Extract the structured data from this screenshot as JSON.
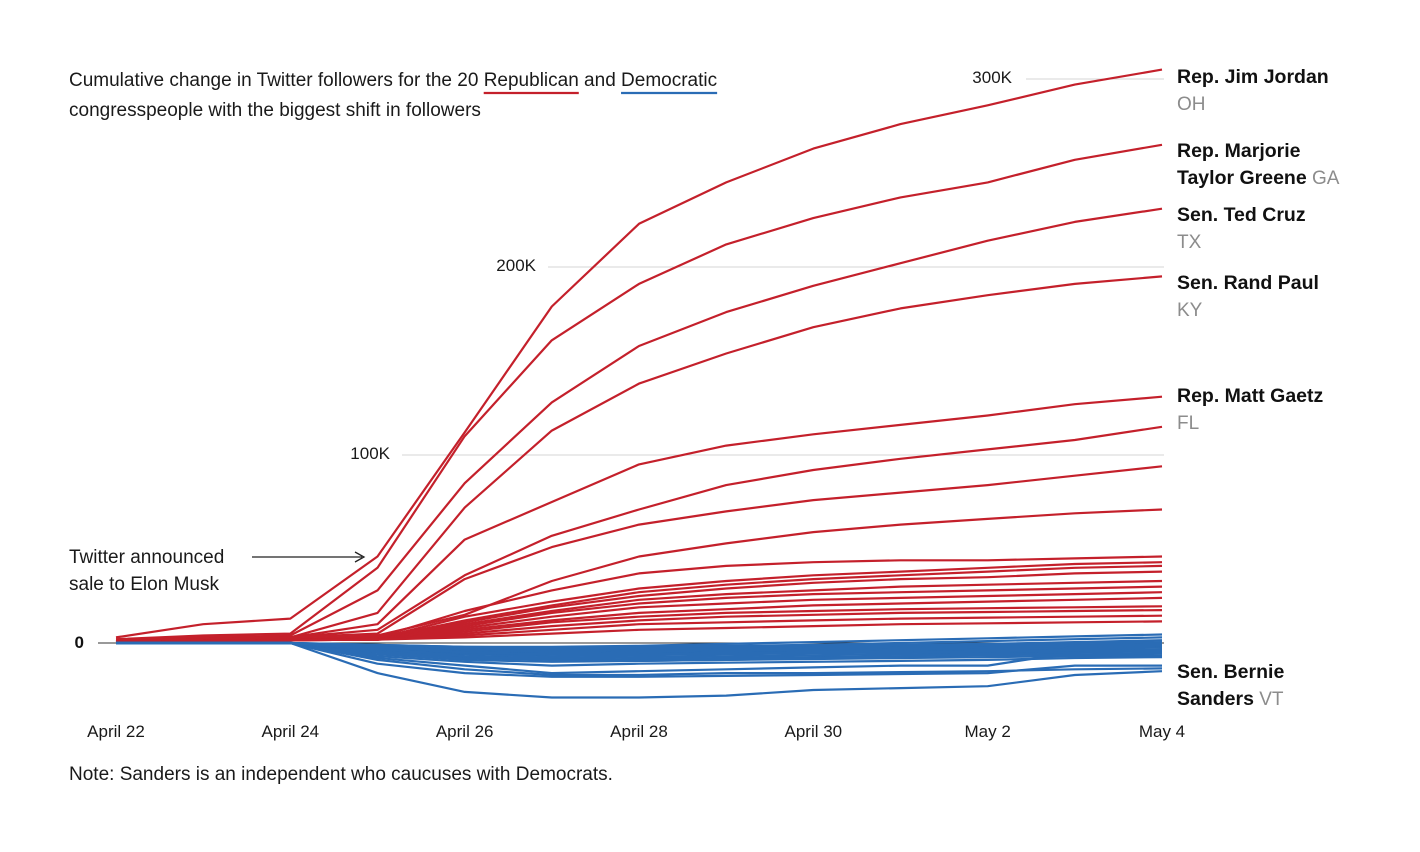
{
  "chart_data": {
    "type": "line",
    "title_line1_prefix": "Cumulative change in Twitter followers for the 20 ",
    "title_rep": "Republican",
    "title_mid": " and ",
    "title_dem": "Democratic",
    "title_line2": "congresspeople with the biggest shift in followers",
    "colors": {
      "republican": "#c4202b",
      "democratic": "#2a6cb5"
    },
    "x_dates": [
      "April 22",
      "April 23",
      "April 24",
      "April 25",
      "April 26",
      "April 27",
      "April 28",
      "April 29",
      "April 30",
      "May 1",
      "May 2",
      "May 3",
      "May 4"
    ],
    "x_tick_labels": [
      "April 22",
      "April 24",
      "April 26",
      "April 28",
      "April 30",
      "May 2",
      "May 4"
    ],
    "y_ticks": [
      {
        "value": 0,
        "label": "0"
      },
      {
        "value": 100000,
        "label": "100K"
      },
      {
        "value": 200000,
        "label": "200K"
      },
      {
        "value": 300000,
        "label": "300K"
      }
    ],
    "ylim": [
      -35000,
      310000
    ],
    "annotation": [
      "Twitter announced",
      "sale to Elon Musk"
    ],
    "note": "Note: Sanders is an independent who caucuses with Democrats.",
    "series": [
      {
        "party": "rep",
        "name": "Rep. Jim Jordan",
        "state": "OH",
        "values": [
          3000,
          10000,
          13000,
          46000,
          112000,
          179000,
          223000,
          245000,
          263000,
          276000,
          286000,
          297000,
          305000
        ]
      },
      {
        "party": "rep",
        "name": "Rep. Marjorie Taylor Greene",
        "state": "GA",
        "values": [
          2000,
          4000,
          5000,
          40000,
          110000,
          161000,
          191000,
          212000,
          226000,
          237000,
          245000,
          257000,
          265000
        ]
      },
      {
        "party": "rep",
        "name": "Sen. Ted Cruz",
        "state": "TX",
        "values": [
          1000,
          3000,
          4000,
          28000,
          85000,
          128000,
          158000,
          176000,
          190000,
          202000,
          214000,
          224000,
          231000
        ]
      },
      {
        "party": "rep",
        "name": "Sen. Rand Paul",
        "state": "KY",
        "values": [
          1000,
          2000,
          3000,
          16000,
          72000,
          113000,
          138000,
          154000,
          168000,
          178000,
          185000,
          191000,
          195000
        ]
      },
      {
        "party": "rep",
        "name": "Rep. Matt Gaetz",
        "state": "FL",
        "values": [
          1000,
          2000,
          3000,
          10000,
          55000,
          75000,
          95000,
          105000,
          111000,
          116000,
          121000,
          127000,
          131000
        ]
      },
      {
        "party": "rep",
        "name": "",
        "state": "",
        "values": [
          1000,
          2000,
          3000,
          7000,
          36000,
          57000,
          71000,
          84000,
          92000,
          98000,
          103000,
          108000,
          115000
        ]
      },
      {
        "party": "rep",
        "name": "",
        "state": "",
        "values": [
          1000,
          2000,
          3000,
          5000,
          34000,
          51000,
          63000,
          70000,
          76000,
          80000,
          84000,
          89000,
          94000
        ]
      },
      {
        "party": "rep",
        "name": "",
        "state": "",
        "values": [
          500,
          1000,
          2000,
          4000,
          15000,
          33000,
          46000,
          53000,
          59000,
          63000,
          66000,
          69000,
          71000
        ]
      },
      {
        "party": "rep",
        "name": "",
        "state": "",
        "values": [
          500,
          1000,
          2000,
          3000,
          17000,
          28000,
          37000,
          41000,
          43000,
          44000,
          44000,
          45000,
          46000
        ]
      },
      {
        "party": "rep",
        "name": "",
        "state": "",
        "values": [
          500,
          1000,
          1500,
          2500,
          14000,
          22000,
          29000,
          33000,
          36000,
          38000,
          40000,
          42000,
          43000
        ]
      },
      {
        "party": "rep",
        "name": "",
        "state": "",
        "values": [
          500,
          1000,
          1500,
          2500,
          12000,
          20000,
          27000,
          31000,
          34000,
          36000,
          38000,
          40000,
          41000
        ]
      },
      {
        "party": "rep",
        "name": "",
        "state": "",
        "values": [
          500,
          1000,
          1500,
          2000,
          11000,
          19000,
          25000,
          29000,
          32000,
          34000,
          35000,
          37000,
          38000
        ]
      },
      {
        "party": "rep",
        "name": "",
        "state": "",
        "values": [
          500,
          1000,
          1500,
          2000,
          10000,
          17000,
          23000,
          26000,
          28000,
          30000,
          31000,
          32000,
          33000
        ]
      },
      {
        "party": "rep",
        "name": "",
        "state": "",
        "values": [
          500,
          1000,
          1500,
          2000,
          9000,
          16000,
          21000,
          24000,
          26000,
          27000,
          28000,
          29000,
          30000
        ]
      },
      {
        "party": "rep",
        "name": "",
        "state": "",
        "values": [
          500,
          1000,
          1500,
          2000,
          8000,
          14000,
          19000,
          21000,
          23000,
          24000,
          25000,
          26000,
          27000
        ]
      },
      {
        "party": "rep",
        "name": "",
        "state": "",
        "values": [
          500,
          1000,
          1500,
          1800,
          7000,
          12000,
          16000,
          18000,
          20000,
          21000,
          22000,
          23000,
          24000
        ]
      },
      {
        "party": "rep",
        "name": "",
        "state": "",
        "values": [
          500,
          1000,
          1500,
          1800,
          6000,
          11000,
          14000,
          16000,
          17000,
          18000,
          18500,
          19000,
          19500
        ]
      },
      {
        "party": "rep",
        "name": "",
        "state": "",
        "values": [
          500,
          1000,
          1500,
          1800,
          5000,
          9000,
          12000,
          14000,
          15000,
          16000,
          16500,
          17000,
          17500
        ]
      },
      {
        "party": "rep",
        "name": "",
        "state": "",
        "values": [
          500,
          1000,
          1500,
          1800,
          4000,
          7000,
          10000,
          11000,
          12000,
          13000,
          13500,
          14000,
          14500
        ]
      },
      {
        "party": "rep",
        "name": "",
        "state": "",
        "values": [
          500,
          1000,
          1500,
          1800,
          3000,
          5000,
          7000,
          8000,
          9000,
          10000,
          10500,
          11000,
          11500
        ]
      },
      {
        "party": "dem",
        "name": "Sen. Bernie Sanders",
        "state": "VT",
        "values": [
          0,
          0,
          0,
          -16000,
          -26000,
          -29000,
          -29000,
          -28000,
          -25000,
          -24000,
          -23000,
          -17000,
          -15000
        ]
      },
      {
        "party": "dem",
        "name": "",
        "state": "",
        "values": [
          0,
          0,
          0,
          -11000,
          -16000,
          -18000,
          -18000,
          -17500,
          -17000,
          -16500,
          -16000,
          -12000,
          -12000
        ]
      },
      {
        "party": "dem",
        "name": "",
        "state": "",
        "values": [
          0,
          0,
          0,
          -9000,
          -14000,
          -17000,
          -17000,
          -16000,
          -16000,
          -15500,
          -15000,
          -14000,
          -13500
        ]
      },
      {
        "party": "dem",
        "name": "",
        "state": "",
        "values": [
          0,
          0,
          0,
          -8000,
          -12000,
          -16000,
          -15000,
          -14000,
          -13000,
          -12000,
          -12000,
          -5000,
          -4000
        ]
      },
      {
        "party": "dem",
        "name": "",
        "state": "",
        "values": [
          0,
          0,
          0,
          -7000,
          -10000,
          -12000,
          -11000,
          -10500,
          -10000,
          -9500,
          -9000,
          -8000,
          -7500
        ]
      },
      {
        "party": "dem",
        "name": "",
        "state": "",
        "values": [
          0,
          0,
          0,
          -6000,
          -9000,
          -10000,
          -9500,
          -9000,
          -8500,
          -8000,
          -7500,
          -7000,
          -6500
        ]
      },
      {
        "party": "dem",
        "name": "",
        "state": "",
        "values": [
          0,
          0,
          0,
          -5000,
          -8000,
          -9000,
          -8500,
          -8000,
          -7500,
          -7000,
          -6500,
          -6000,
          -5500
        ]
      },
      {
        "party": "dem",
        "name": "",
        "state": "",
        "values": [
          0,
          0,
          0,
          -4500,
          -7000,
          -8000,
          -7500,
          -7000,
          -6500,
          -6000,
          -5500,
          -5000,
          -4500
        ]
      },
      {
        "party": "dem",
        "name": "",
        "state": "",
        "values": [
          0,
          0,
          0,
          -4000,
          -6000,
          -7000,
          -6500,
          -6000,
          -5500,
          -5000,
          -4500,
          -4000,
          -3500
        ]
      },
      {
        "party": "dem",
        "name": "",
        "state": "",
        "values": [
          0,
          0,
          0,
          -3500,
          -5500,
          -6000,
          -5500,
          -5000,
          -4500,
          -4000,
          -3500,
          -3000,
          -2500
        ]
      },
      {
        "party": "dem",
        "name": "",
        "state": "",
        "values": [
          0,
          0,
          0,
          -3000,
          -5000,
          -5500,
          -5000,
          -4500,
          -4000,
          -3500,
          -3000,
          -2500,
          -2000
        ]
      },
      {
        "party": "dem",
        "name": "",
        "state": "",
        "values": [
          0,
          0,
          0,
          -2500,
          -4500,
          -5000,
          -4500,
          -4000,
          -3500,
          -3000,
          -2500,
          -2000,
          -1500
        ]
      },
      {
        "party": "dem",
        "name": "",
        "state": "",
        "values": [
          0,
          0,
          0,
          -2000,
          -4000,
          -4500,
          -4000,
          -3500,
          -3000,
          -2500,
          -2000,
          -1500,
          -1000
        ]
      },
      {
        "party": "dem",
        "name": "",
        "state": "",
        "values": [
          0,
          0,
          0,
          -2000,
          -3500,
          -4000,
          -3500,
          -3000,
          -2500,
          -2000,
          -1500,
          -1000,
          -500
        ]
      },
      {
        "party": "dem",
        "name": "",
        "state": "",
        "values": [
          0,
          0,
          0,
          -1500,
          -3000,
          -3500,
          -3000,
          -2500,
          -2000,
          -1500,
          -1000,
          0,
          500
        ]
      },
      {
        "party": "dem",
        "name": "",
        "state": "",
        "values": [
          0,
          0,
          0,
          -1500,
          -2500,
          -3000,
          -2500,
          -2000,
          -1500,
          -1000,
          -500,
          500,
          1500
        ]
      },
      {
        "party": "dem",
        "name": "",
        "state": "",
        "values": [
          0,
          0,
          0,
          -1000,
          -2000,
          -2500,
          -2000,
          -1500,
          -1000,
          0,
          1000,
          2000,
          3000
        ]
      },
      {
        "party": "dem",
        "name": "",
        "state": "",
        "values": [
          0,
          0,
          0,
          -1000,
          -2000,
          -2000,
          -1500,
          -500,
          500,
          1500,
          2500,
          3500,
          4500
        ]
      },
      {
        "party": "dem",
        "name": "",
        "state": "",
        "values": [
          0,
          0,
          0,
          -2000,
          -5000,
          -6000,
          -6000,
          -5500,
          -5000,
          -5000,
          -4500,
          -4000,
          -3800
        ]
      },
      {
        "party": "dem",
        "name": "",
        "state": "",
        "values": [
          0,
          0,
          0,
          -3000,
          -7000,
          -9000,
          -9500,
          -9000,
          -8000,
          -7000,
          -6000,
          -6500,
          -7000
        ]
      }
    ]
  }
}
